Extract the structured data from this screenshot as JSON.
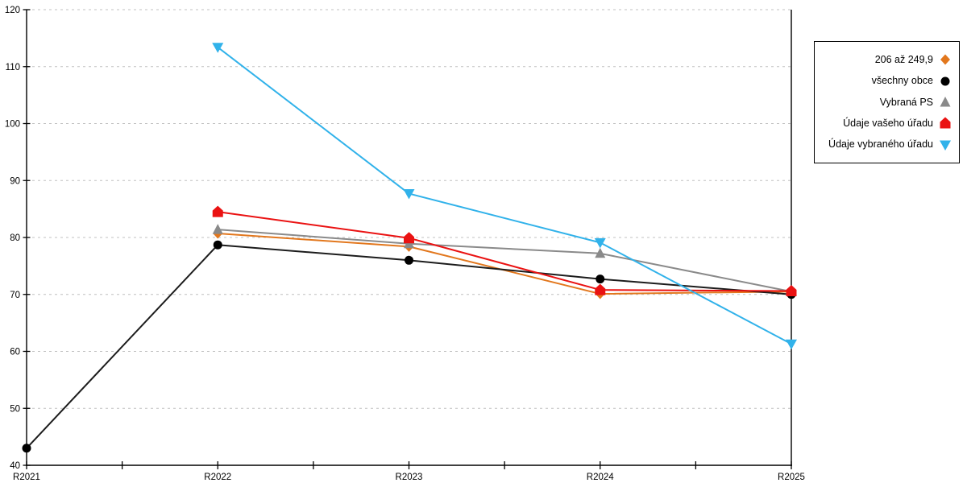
{
  "chart_data": {
    "type": "line",
    "title": "",
    "xlabel": "",
    "ylabel": "",
    "x_categories": [
      "R2021",
      "R2022",
      "R2023",
      "R2024",
      "R2025"
    ],
    "ylim": [
      40,
      120
    ],
    "y_ticks": [
      40,
      50,
      60,
      70,
      80,
      90,
      100,
      110,
      120
    ],
    "grid": "horizontal-dashed",
    "legend_position": "right-outside",
    "series": [
      {
        "name": "206 až 249,9",
        "marker": "diamond",
        "color": "#e2771d",
        "line_color": "#e2771d",
        "values": [
          null,
          80.7,
          78.4,
          70.1,
          70.5
        ]
      },
      {
        "name": "všechny obce",
        "marker": "circle",
        "color": "#000000",
        "line_color": "#1c1c1c",
        "values": [
          43.0,
          78.7,
          76.0,
          72.7,
          70.0
        ]
      },
      {
        "name": "Vybraná PS",
        "marker": "triangle-up",
        "color": "#8a8a8a",
        "line_color": "#8a8a8a",
        "values": [
          null,
          81.4,
          78.9,
          77.2,
          70.5
        ]
      },
      {
        "name": "Údaje vašeho úřadu",
        "marker": "pentagon",
        "color": "#ea1212",
        "line_color": "#ea1212",
        "values": [
          null,
          84.5,
          79.9,
          70.8,
          70.6
        ]
      },
      {
        "name": "Údaje vybraného úřadu",
        "marker": "triangle-down",
        "color": "#31b2ea",
        "line_color": "#31b2ea",
        "values": [
          null,
          113.4,
          87.7,
          79.1,
          61.3
        ]
      }
    ]
  },
  "style": {
    "grid_color": "#c0c0c0",
    "axis_color": "#000000",
    "background": "#ffffff"
  }
}
